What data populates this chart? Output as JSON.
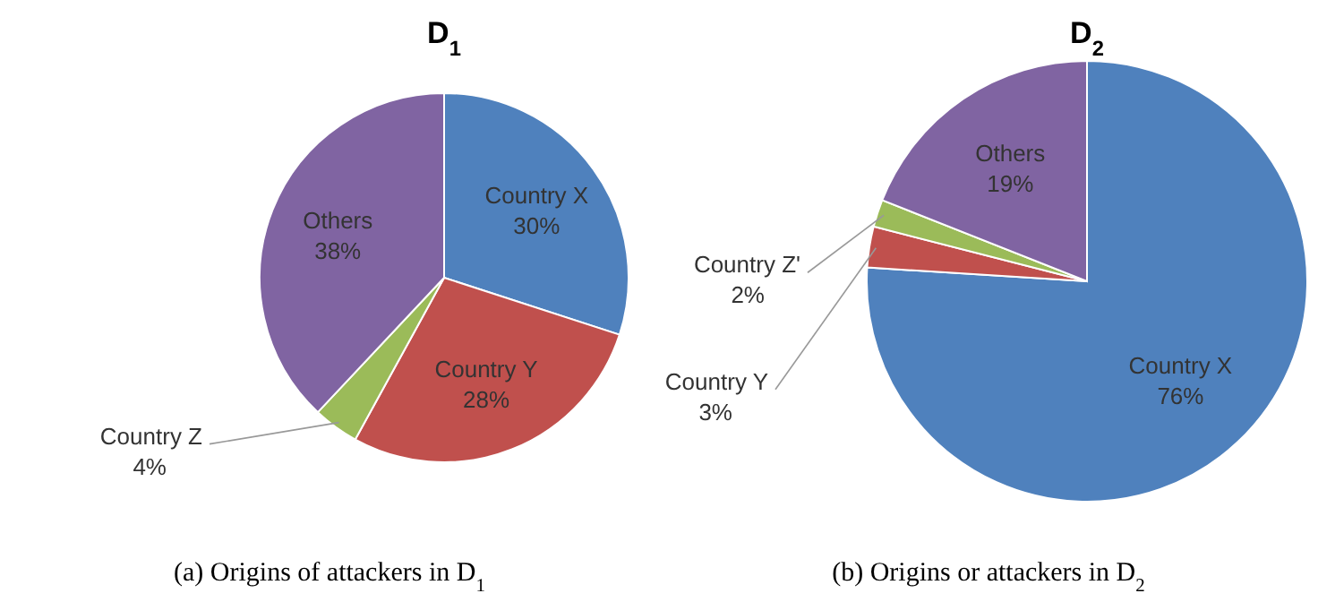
{
  "chart_data": [
    {
      "type": "pie",
      "title": "D$_{1}$",
      "categories": [
        "Country X",
        "Country Y",
        "Country Z",
        "Others"
      ],
      "values": [
        30,
        28,
        4,
        38
      ],
      "value_labels": [
        "30%",
        "28%",
        "4%",
        "38%"
      ],
      "colors": [
        "#4f81bd",
        "#c0504d",
        "#9bbb59",
        "#8064a2"
      ],
      "annotations": [
        "(a) Origins of attackers in D$_{1}$"
      ]
    },
    {
      "type": "pie",
      "title": "D$_{2}$",
      "categories": [
        "Country X",
        "Country Y",
        "Country Z'",
        "Others"
      ],
      "values": [
        76,
        3,
        2,
        19
      ],
      "value_labels": [
        "76%",
        "3%",
        "2%",
        "19%"
      ],
      "colors": [
        "#4f81bd",
        "#c0504d",
        "#9bbb59",
        "#8064a2"
      ],
      "annotations": [
        "(b) Origins or attackers in D$_{2}$"
      ]
    }
  ]
}
